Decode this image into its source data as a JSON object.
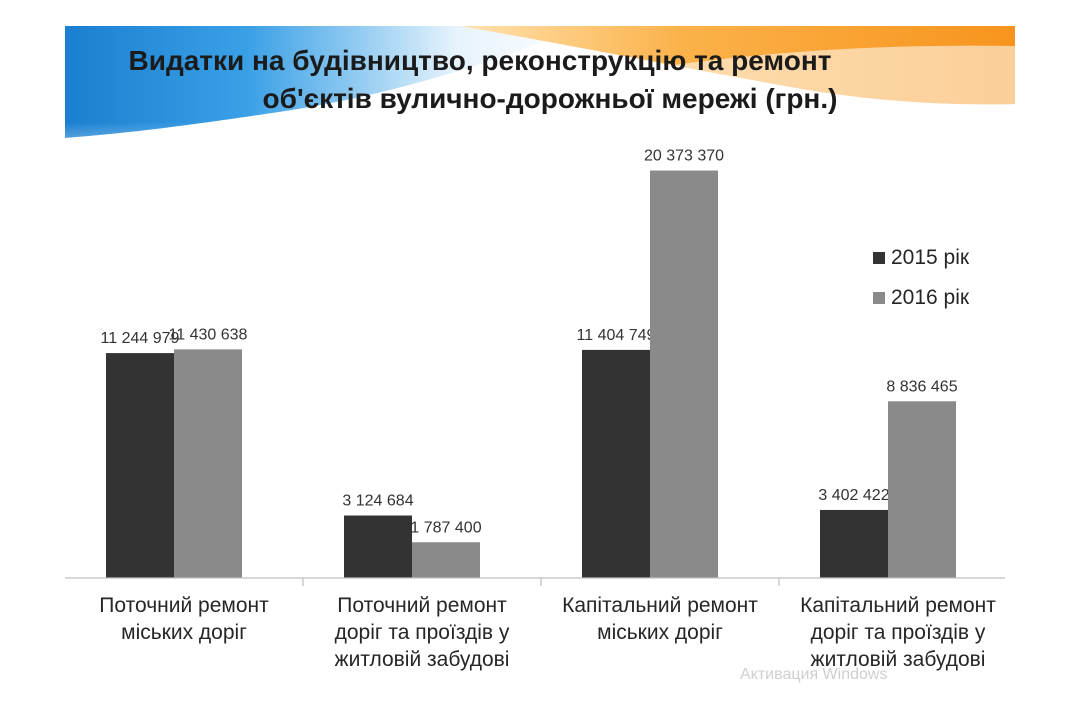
{
  "title": {
    "line1": "Видатки на  будівництво, реконструкцію та ремонт",
    "line2": "об'єктів вулично-дорожньої мережі (грн.)"
  },
  "chart_data": {
    "type": "bar",
    "categories": [
      [
        "Поточний ремонт",
        "міських доріг"
      ],
      [
        "Поточний ремонт",
        "доріг та проїздів у",
        "житловій забудові"
      ],
      [
        "Капітальний ремонт",
        "міських доріг"
      ],
      [
        "Капітальний ремонт",
        "доріг та проїздів у",
        "житловій забудові"
      ]
    ],
    "series": [
      {
        "name": "2015 рік",
        "values": [
          11244979,
          3124684,
          11404749,
          3402422
        ],
        "labels": [
          "11 244 979",
          "3 124 684",
          "11 404 749",
          "3 402 422"
        ],
        "color": "#333333"
      },
      {
        "name": "2016 рік",
        "values": [
          11430638,
          1787400,
          20373370,
          8836465
        ],
        "labels": [
          "11 430 638",
          "1 787 400",
          "20 373 370",
          "8 836 465"
        ],
        "color": "#8a8a8a"
      }
    ],
    "ylim": [
      0,
      22000000
    ],
    "grid": false,
    "legend_position": "right"
  },
  "colors": {
    "banner_blue": "#1e88d6",
    "banner_orange": "#f7941d",
    "axis": "#bfbfbf",
    "text": "#262626"
  },
  "watermark": "Активация Windows"
}
